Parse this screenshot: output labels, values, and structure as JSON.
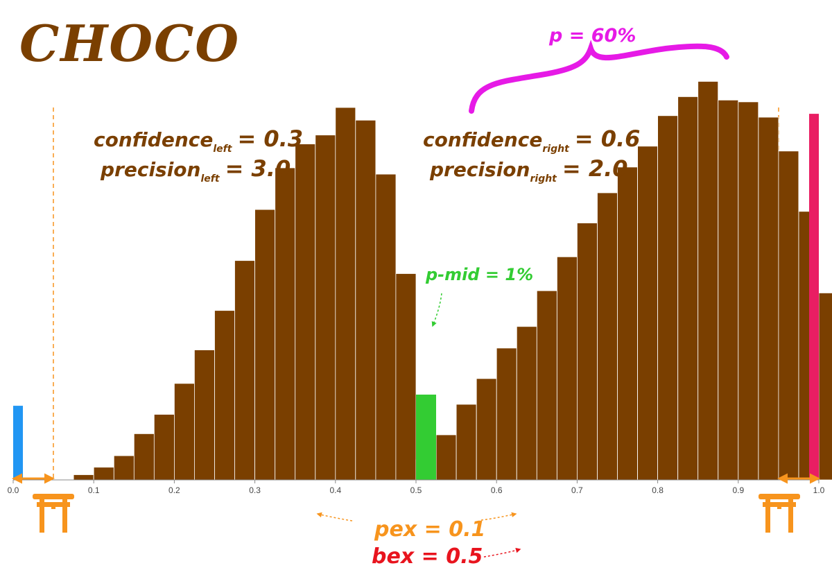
{
  "title": "CHOCO",
  "colors": {
    "brown": "#7a3f00",
    "blue": "#2196f3",
    "green": "#33cc33",
    "pink": "#e91e63",
    "magenta": "#e61ae6",
    "orange": "#f7941d",
    "red": "#e8141e",
    "axis": "#444444"
  },
  "annotations": {
    "confidence_left": {
      "base": "confidence",
      "sub": "left",
      "value": "= 0.3"
    },
    "precision_left": {
      "base": "precision",
      "sub": "left",
      "value": "= 3.0"
    },
    "confidence_right": {
      "base": "confidence",
      "sub": "right",
      "value": "= 0.6"
    },
    "precision_right": {
      "base": "precision",
      "sub": "right",
      "value": "= 2.0"
    },
    "p_label": "p = 60%",
    "p_mid_label": "p-mid = 1%",
    "pex_label": "pex = 0.1",
    "bex_label": "bex = 0.5",
    "gate_icon": "torii-gate-icon"
  },
  "chart_data": {
    "type": "bar",
    "title": "",
    "xlabel": "",
    "ylabel": "",
    "xlim": [
      0.0,
      1.0
    ],
    "ylim": [
      0,
      1
    ],
    "grid": false,
    "legend": "none",
    "xticks": [
      "0.0",
      "0.1",
      "0.2",
      "0.3",
      "0.4",
      "0.5",
      "0.6",
      "0.7",
      "0.8",
      "0.9",
      "1.0"
    ],
    "bin_width": 0.025,
    "series": [
      {
        "color": "#7a3f00",
        "bins": [
          [
            0.0625,
            0.0
          ],
          [
            0.0875,
            0.014
          ],
          [
            0.1125,
            0.034
          ],
          [
            0.1375,
            0.065
          ],
          [
            0.1625,
            0.124
          ],
          [
            0.1875,
            0.176
          ],
          [
            0.2125,
            0.259
          ],
          [
            0.2375,
            0.349
          ],
          [
            0.2625,
            0.455
          ],
          [
            0.2875,
            0.589
          ],
          [
            0.3125,
            0.726
          ],
          [
            0.3375,
            0.838
          ],
          [
            0.3625,
            0.902
          ],
          [
            0.3875,
            0.926
          ],
          [
            0.4125,
            1.0
          ],
          [
            0.4375,
            0.966
          ],
          [
            0.4625,
            0.821
          ],
          [
            0.4875,
            0.554
          ],
          [
            0.5125,
            0.054
          ],
          [
            0.5375,
            0.121
          ],
          [
            0.5625,
            0.203
          ],
          [
            0.5875,
            0.272
          ],
          [
            0.6125,
            0.354
          ],
          [
            0.6375,
            0.412
          ],
          [
            0.6625,
            0.508
          ],
          [
            0.6875,
            0.599
          ],
          [
            0.7125,
            0.69
          ],
          [
            0.7375,
            0.771
          ],
          [
            0.7625,
            0.84
          ],
          [
            0.7875,
            0.896
          ],
          [
            0.8125,
            0.978
          ],
          [
            0.8375,
            1.029
          ],
          [
            0.8625,
            1.07
          ],
          [
            0.8875,
            1.02
          ],
          [
            0.9125,
            1.015
          ],
          [
            0.9375,
            0.974
          ],
          [
            0.9625,
            0.883
          ],
          [
            0.9875,
            0.721
          ],
          [
            1.0125,
            0.502
          ]
        ]
      },
      {
        "color": "#2196f3",
        "bins": [
          [
            0.0,
            0.199
          ]
        ]
      },
      {
        "color": "#33cc33",
        "bins": [
          [
            0.5125,
            0.229
          ]
        ]
      },
      {
        "color": "#e91e63",
        "bins": [
          [
            1.0,
            0.983
          ]
        ]
      }
    ],
    "pex_lines": [
      0.05,
      0.95
    ]
  }
}
